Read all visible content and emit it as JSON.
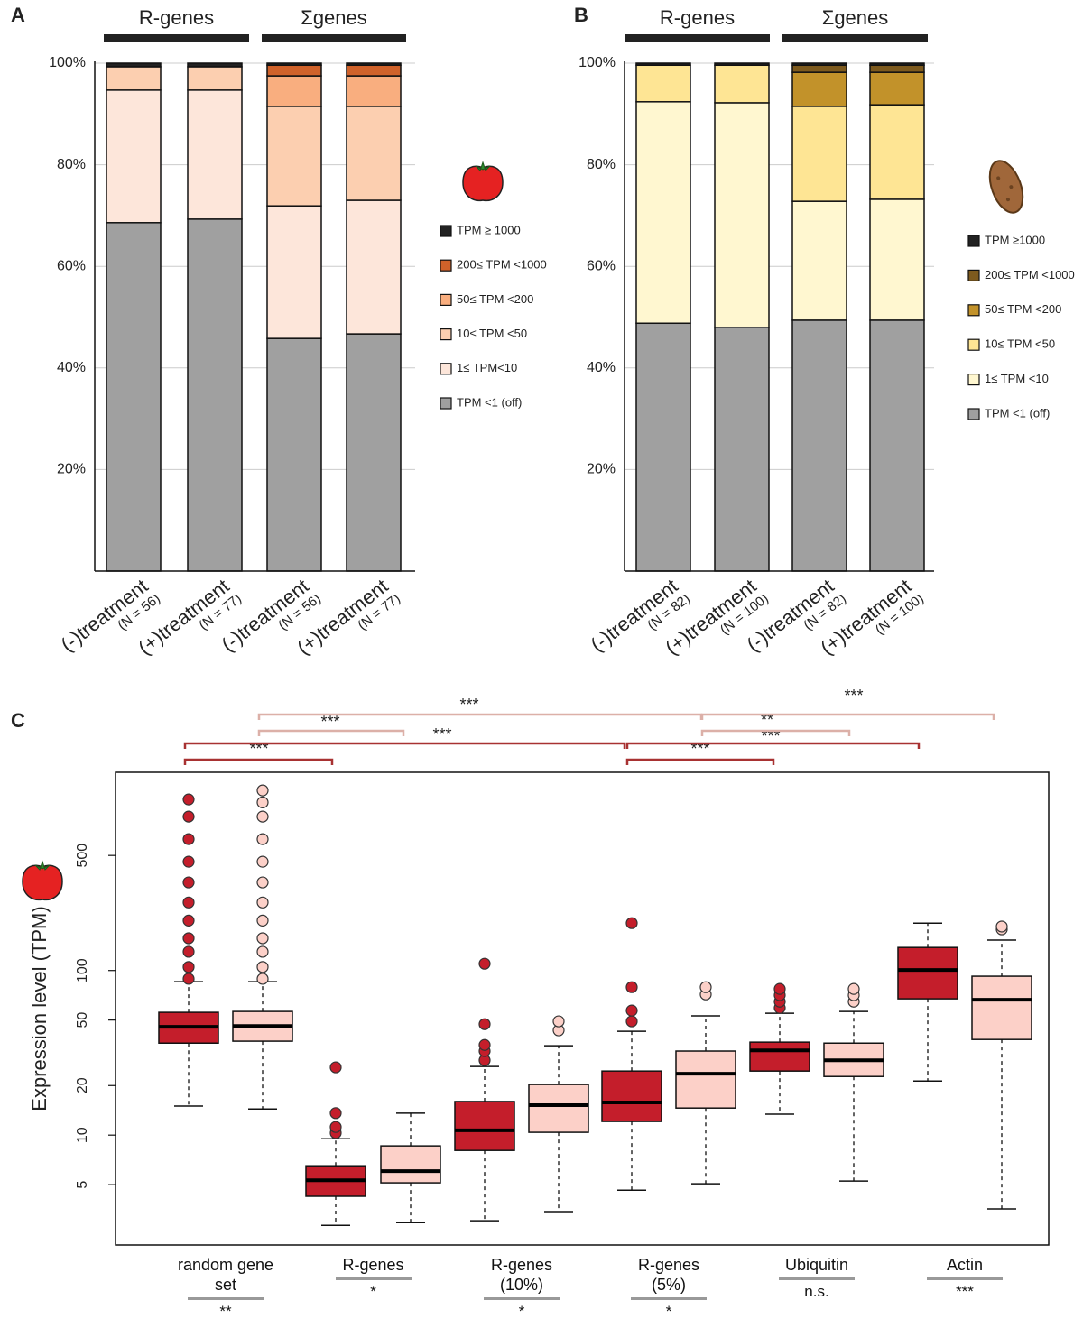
{
  "chart_data": [
    {
      "type": "bar",
      "stacked": true,
      "panel": "A",
      "groups": [
        "R-genes",
        "Σgenes"
      ],
      "categories": [
        "(-)treatment",
        "(+)treatment",
        "(-)treatment",
        "(+)treatment"
      ],
      "category_notes": [
        "(N = 56)",
        "(N = 77)",
        "(N = 56)",
        "(N = 77)"
      ],
      "ylim": [
        0,
        100
      ],
      "yticks": [
        {
          "value": 20,
          "label": "20%"
        },
        {
          "value": 40,
          "label": "40%"
        },
        {
          "value": 60,
          "label": "60%"
        },
        {
          "value": 80,
          "label": "80%"
        },
        {
          "value": 100,
          "label": "100%"
        }
      ],
      "grid": true,
      "series": [
        {
          "name": "TPM <1 (off)",
          "color": "#a0a0a0",
          "values": [
            68.6,
            69.3,
            45.8,
            46.7
          ]
        },
        {
          "name": "1≤ TPM<10",
          "color": "#fde6da",
          "values": [
            26.1,
            25.4,
            26.1,
            26.3
          ]
        },
        {
          "name": "10≤ TPM <50",
          "color": "#fccfb0",
          "values": [
            4.6,
            4.6,
            19.6,
            18.5
          ]
        },
        {
          "name": "50≤ TPM <200",
          "color": "#f9ae7f",
          "values": [
            0,
            0,
            6.0,
            6.0
          ]
        },
        {
          "name": "200≤ TPM <1000",
          "color": "#d0622a",
          "values": [
            0,
            0,
            2.1,
            2.1
          ]
        },
        {
          "name": "TPM ≥ 1000",
          "color": "#222222",
          "values": [
            0.7,
            0.7,
            0.4,
            0.4
          ]
        }
      ]
    },
    {
      "type": "bar",
      "stacked": true,
      "panel": "B",
      "groups": [
        "R-genes",
        "Σgenes"
      ],
      "categories": [
        "(-)treatment",
        "(+)treatment",
        "(-)treatment",
        "(+)treatment"
      ],
      "category_notes": [
        "(N = 82)",
        "(N = 100)",
        "(N = 82)",
        "(N = 100)"
      ],
      "ylim": [
        0,
        100
      ],
      "yticks": [
        {
          "value": 20,
          "label": "20%"
        },
        {
          "value": 40,
          "label": "40%"
        },
        {
          "value": 60,
          "label": "60%"
        },
        {
          "value": 80,
          "label": "80%"
        },
        {
          "value": 100,
          "label": "100%"
        }
      ],
      "grid": true,
      "series": [
        {
          "name": "TPM <1 (off)",
          "color": "#a0a0a0",
          "values": [
            48.8,
            48.0,
            49.4,
            49.4
          ]
        },
        {
          "name": "1≤ TPM <10",
          "color": "#fff7d0",
          "values": [
            43.6,
            44.2,
            23.4,
            23.8
          ]
        },
        {
          "name": "10≤ TPM <50",
          "color": "#fee594",
          "values": [
            7.2,
            7.4,
            18.7,
            18.6
          ]
        },
        {
          "name": "50≤ TPM <200",
          "color": "#c2922a",
          "values": [
            0,
            0,
            6.7,
            6.4
          ]
        },
        {
          "name": "200≤ TPM <1000",
          "color": "#7d5a1e",
          "values": [
            0,
            0,
            1.4,
            1.4
          ]
        },
        {
          "name": "TPM ≥1000",
          "color": "#222222",
          "values": [
            0.4,
            0.4,
            0.4,
            0.4
          ]
        }
      ]
    },
    {
      "type": "box",
      "panel": "C",
      "log_scale": true,
      "y_label": "Expression level (TPM)",
      "categories": [
        "random gene set",
        "R-genes",
        "R-genes (10%)",
        "R-genes (5%)",
        "Ubiquitin",
        "Actin"
      ],
      "category_significance": [
        "**",
        "*",
        "*",
        "*",
        "n.s.",
        "***"
      ],
      "significance": [
        "***",
        "***",
        "***",
        "***",
        "***",
        "***",
        "**",
        "***"
      ],
      "ylim": [
        2.15,
        1600
      ],
      "yticks": [
        5,
        10,
        20,
        50,
        100,
        500
      ],
      "series": [
        {
          "color": "#c41e2b",
          "boxes": [
            {
              "whislo": 15.0,
              "q1": 36.2,
              "med": 45.5,
              "q3": 55.7,
              "whishi": 85.5,
              "outliers": [
                89,
                105,
                130,
                157,
                201,
                259,
                343,
                458,
                628,
                861,
                1094
              ]
            },
            {
              "whislo": 2.83,
              "q1": 4.25,
              "med": 5.32,
              "q3": 6.51,
              "whishi": 9.5,
              "outliers": [
                10.3,
                11.2,
                13.6,
                25.8
              ]
            },
            {
              "whislo": 3.02,
              "q1": 8.07,
              "med": 10.7,
              "q3": 16.0,
              "whishi": 26.1,
              "outliers": [
                28.5,
                32.4,
                35.3,
                47.2,
                110
              ]
            },
            {
              "whislo": 4.63,
              "q1": 12.1,
              "med": 15.8,
              "q3": 24.5,
              "whishi": 42.7,
              "outliers": [
                49.1,
                57.1,
                79.2,
                194
              ]
            },
            {
              "whislo": 13.4,
              "q1": 24.5,
              "med": 32.7,
              "q3": 36.7,
              "whishi": 55.0,
              "outliers": [
                59.3,
                64.7,
                70.8,
                77.3
              ]
            },
            {
              "whislo": 21.3,
              "q1": 67.3,
              "med": 100.7,
              "q3": 138,
              "whishi": 194,
              "outliers": []
            }
          ]
        },
        {
          "color": "#fcd0c8",
          "boxes": [
            {
              "whislo": 14.4,
              "q1": 37.2,
              "med": 46.0,
              "q3": 56.4,
              "whishi": 85.5,
              "outliers": [
                89,
                105,
                130,
                157,
                201,
                259,
                343,
                458,
                628,
                861,
                1050,
                1241
              ]
            },
            {
              "whislo": 2.94,
              "q1": 5.13,
              "med": 6.04,
              "q3": 8.6,
              "whishi": 13.6,
              "outliers": []
            },
            {
              "whislo": 3.43,
              "q1": 10.4,
              "med": 15.2,
              "q3": 20.3,
              "whishi": 34.9,
              "outliers": [
                43.3,
                49.1
              ]
            },
            {
              "whislo": 5.06,
              "q1": 14.6,
              "med": 23.6,
              "q3": 32.4,
              "whishi": 53.0,
              "outliers": [
                71.6,
                79.2
              ]
            },
            {
              "whislo": 5.26,
              "q1": 22.7,
              "med": 28.5,
              "q3": 36.2,
              "whishi": 56.4,
              "outliers": [
                64.7,
                70.8,
                77.3
              ]
            },
            {
              "whislo": 3.56,
              "q1": 38.1,
              "med": 66.4,
              "q3": 92.3,
              "whishi": 153,
              "outliers": [
                178,
                185
              ]
            }
          ]
        }
      ]
    }
  ]
}
